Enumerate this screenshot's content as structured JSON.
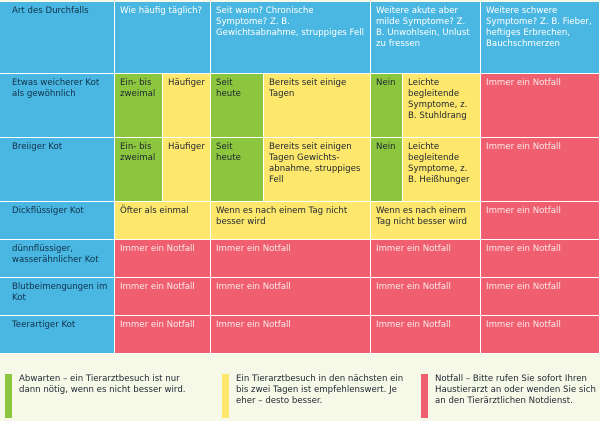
{
  "header": {
    "col_type": "Art des Durchfalls",
    "col_freq": "Wie häufig täglich?",
    "col_chronic": "Seit wann? Chronische Symptome? Z. B. Gewichtsabnahme, struppiges Fell",
    "col_acute": "Weitere akute aber milde Symptome? Z. B. Unwohlsein, Unlust zu fressen",
    "col_severe": "Weitere schwere Symptome? Z. B. Fieber, heftiges Erbrechen, Bauchschmerzen"
  },
  "rows": [
    {
      "name": "Etwas weicherer Kot als gewöhnlich",
      "freq_a": "Ein- bis zweimal",
      "freq_b": "Häufiger",
      "chronic_a": "Seit heute",
      "chronic_b": "Bereits seit einige Tagen",
      "acute_a": "Nein",
      "acute_b": "Leichte begleitende Symptome, z. B. Stuhldrang",
      "severe": "Immer ein Notfall"
    },
    {
      "name": "Breiiger Kot",
      "freq_a": "Ein- bis zweimal",
      "freq_b": "Häufiger",
      "chronic_a": "Seit heute",
      "chronic_b": "Bereits seit einigen Tagen Gewichts-abnahme, struppiges Fell",
      "acute_a": "Nein",
      "acute_b": "Leichte begleitende Symptome, z. B. Heißhunger",
      "severe": "Immer ein Notfall"
    },
    {
      "name": "Dickflüssiger Kot",
      "freq": "Öfter als einmal",
      "chronic": "Wenn es nach einem Tag nicht besser wird",
      "acute": "Wenn es nach einem Tag nicht besser wird",
      "severe": "Immer ein Notfall"
    },
    {
      "name": "dünnflüssiger, wasserähnlicher Kot",
      "freq": "Immer ein Notfall",
      "chronic": "Immer ein Notfall",
      "acute": "Immer ein Notfall",
      "severe": "Immer ein Notfall"
    },
    {
      "name": "Blutbeimengungen im Kot",
      "freq": "Immer ein Notfall",
      "chronic": "Immer ein Notfall",
      "acute": "Immer ein Notfall",
      "severe": "Immer ein Notfall"
    },
    {
      "name": "Teerartiger Kot",
      "freq": "Immer ein Notfall",
      "chronic": "Immer ein Notfall",
      "acute": "Immer ein Notfall",
      "severe": "Immer ein Notfall"
    }
  ],
  "legend": {
    "green": "Abwarten – ein Tierarztbesuch ist nur dann nötig, wenn es nicht besser wird.",
    "yellow": "Ein Tierarztbesuch in den nächsten ein bis zwei Tagen ist empfehlenswert. Je eher – desto besser.",
    "red": "Notfall – Bitte rufen Sie sofort Ihren Haustierarzt an oder wenden Sie sich an den Tierärztlichen Notdienst."
  },
  "colors": {
    "blue": "#49b7e1",
    "green": "#8cc63f",
    "yellow": "#fde86d",
    "red": "#ef5f6f"
  }
}
